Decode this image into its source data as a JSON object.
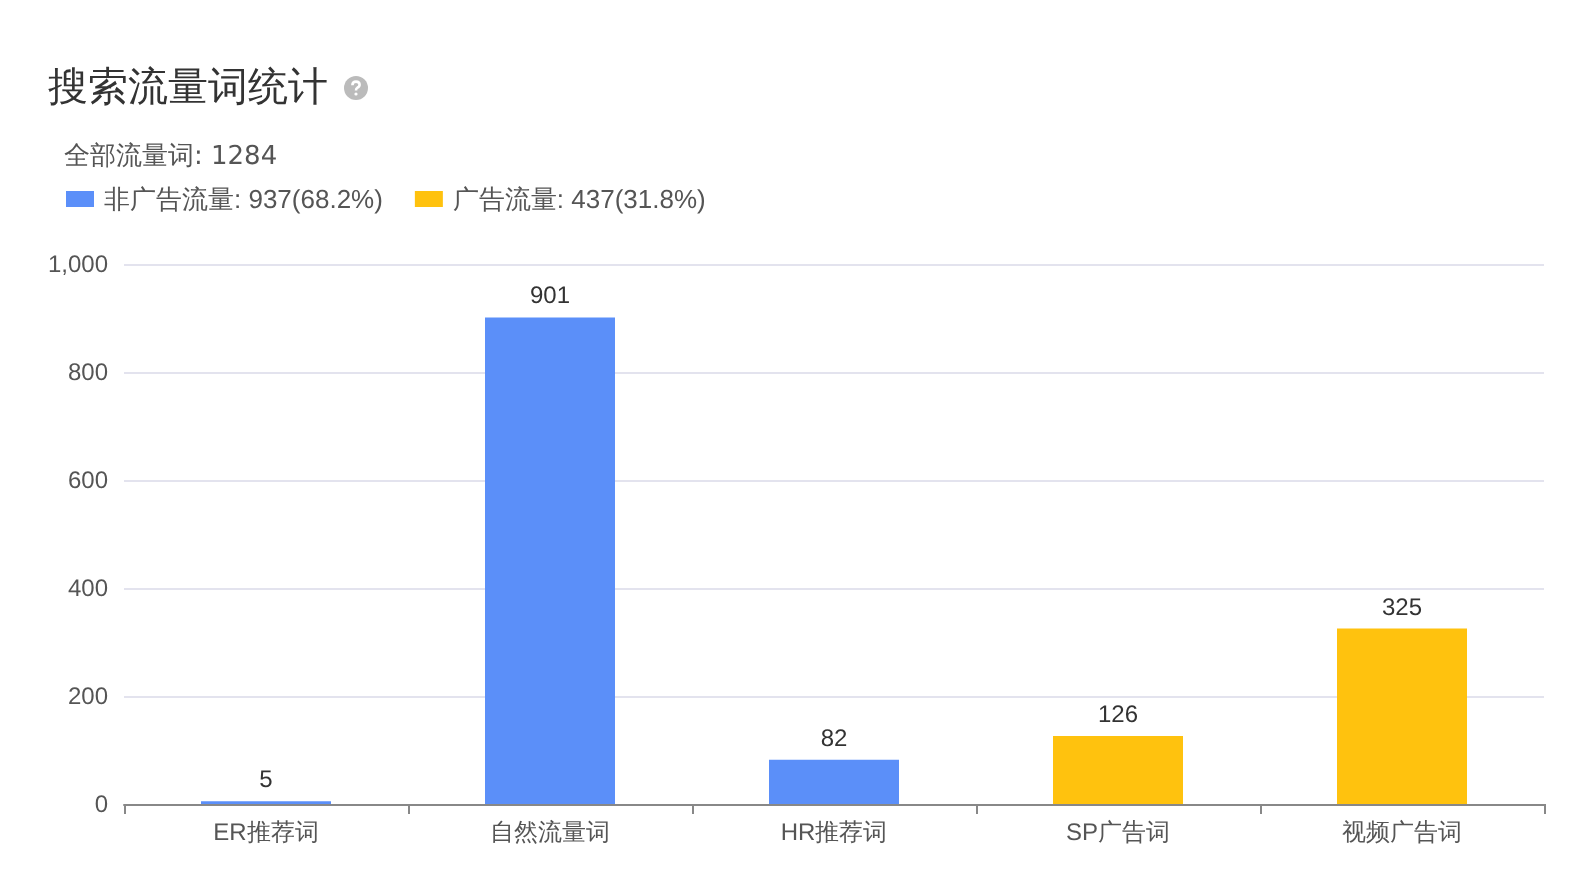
{
  "chart_data": {
    "type": "bar",
    "title": "搜索流量词统计",
    "subtitle": "全部流量词: 1284",
    "categories": [
      "ER推荐词",
      "自然流量词",
      "HR推荐词",
      "SP广告词",
      "视频广告词"
    ],
    "series": [
      {
        "name": "非广告流量: 937(68.2%)",
        "color": "#5b8ff9",
        "values": [
          5,
          901,
          82,
          null,
          null
        ]
      },
      {
        "name": "广告流量: 437(31.8%)",
        "color": "#ffc20e",
        "values": [
          null,
          null,
          null,
          126,
          325
        ]
      }
    ],
    "stacked": true,
    "ylim": [
      0,
      1000
    ],
    "yticks": [
      0,
      200,
      400,
      600,
      800,
      {
        "value": 1000,
        "label": "1,000"
      }
    ],
    "grid": "y",
    "legend": "top left",
    "data_labels": true
  }
}
